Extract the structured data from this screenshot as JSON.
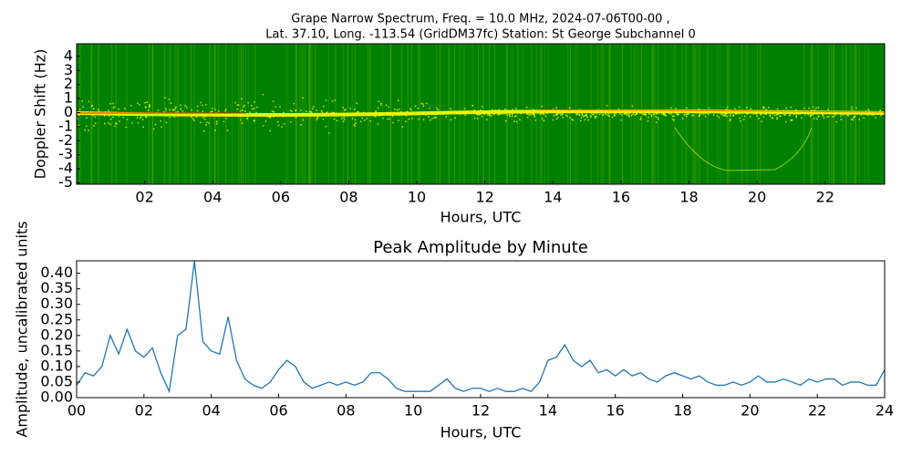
{
  "chart_data": [
    {
      "type": "spectrogram",
      "title": [
        "Grape Narrow Spectrum, Freq. = 10.0 MHz, 2024-07-06T00-00 ,",
        "Lat.  37.10, Long. -113.54 (GridDM37fc) Station: St George Subchannel 0"
      ],
      "xlabel": "Hours, UTC",
      "ylabel": "Doppler Shift (Hz)",
      "colors": [
        "#008000",
        "#ffff00",
        "#ff0000"
      ],
      "xlim": [
        0,
        23.75
      ],
      "ylim": [
        -5.1,
        4.9
      ],
      "xticks": [
        {
          "value": 2,
          "label": "02"
        },
        {
          "value": 4,
          "label": "04"
        },
        {
          "value": 6,
          "label": "06"
        },
        {
          "value": 8,
          "label": "08"
        },
        10,
        12,
        14,
        16,
        18,
        20,
        22
      ],
      "yticks": [
        -5,
        -4,
        -3,
        -2,
        -1,
        0,
        1,
        2,
        3,
        4
      ]
    },
    {
      "type": "line",
      "title": "Peak Amplitude by Minute",
      "xlabel": "Hours, UTC",
      "ylabel": "Amplitude, uncalibrated units",
      "color": "#1f77b4",
      "xlim": [
        0,
        24
      ],
      "ylim": [
        0,
        0.44
      ],
      "xticks": [
        {
          "value": 0,
          "label": "00"
        },
        {
          "value": 2,
          "label": "02"
        },
        {
          "value": 4,
          "label": "04"
        },
        {
          "value": 6,
          "label": "06"
        },
        {
          "value": 8,
          "label": "08"
        },
        10,
        12,
        14,
        16,
        18,
        20,
        22,
        24
      ],
      "yticks": [
        {
          "value": 0,
          "label": "0.00"
        },
        {
          "value": 0.05,
          "label": "0.05"
        },
        {
          "value": 0.1,
          "label": "0.10"
        },
        {
          "value": 0.15,
          "label": "0.15"
        },
        {
          "value": 0.2,
          "label": "0.20"
        },
        {
          "value": 0.25,
          "label": "0.25"
        },
        {
          "value": 0.3,
          "label": "0.30"
        },
        {
          "value": 0.35,
          "label": "0.35"
        },
        {
          "value": 0.4,
          "label": "0.40"
        }
      ],
      "x": [
        0,
        0.25,
        0.5,
        0.75,
        1,
        1.25,
        1.5,
        1.75,
        2,
        2.25,
        2.5,
        2.75,
        3,
        3.25,
        3.5,
        3.75,
        4,
        4.25,
        4.5,
        4.75,
        5,
        5.25,
        5.5,
        5.75,
        6,
        6.25,
        6.5,
        6.75,
        7,
        7.25,
        7.5,
        7.75,
        8,
        8.25,
        8.5,
        8.75,
        9,
        9.25,
        9.5,
        9.75,
        10,
        10.25,
        10.5,
        10.75,
        11,
        11.25,
        11.5,
        11.75,
        12,
        12.25,
        12.5,
        12.75,
        13,
        13.25,
        13.5,
        13.75,
        14,
        14.25,
        14.5,
        14.75,
        15,
        15.25,
        15.5,
        15.75,
        16,
        16.25,
        16.5,
        16.75,
        17,
        17.25,
        17.5,
        17.75,
        18,
        18.25,
        18.5,
        18.75,
        19,
        19.25,
        19.5,
        19.75,
        20,
        20.25,
        20.5,
        20.75,
        21,
        21.25,
        21.5,
        21.75,
        22,
        22.25,
        22.5,
        22.75,
        23,
        23.25,
        23.5,
        23.75,
        24
      ],
      "values": [
        0.04,
        0.08,
        0.07,
        0.1,
        0.2,
        0.14,
        0.22,
        0.15,
        0.13,
        0.16,
        0.08,
        0.02,
        0.2,
        0.22,
        0.44,
        0.18,
        0.15,
        0.14,
        0.26,
        0.12,
        0.06,
        0.04,
        0.03,
        0.05,
        0.09,
        0.12,
        0.1,
        0.05,
        0.03,
        0.04,
        0.05,
        0.04,
        0.05,
        0.04,
        0.05,
        0.08,
        0.08,
        0.06,
        0.03,
        0.02,
        0.02,
        0.02,
        0.02,
        0.04,
        0.06,
        0.03,
        0.02,
        0.03,
        0.03,
        0.02,
        0.03,
        0.02,
        0.02,
        0.03,
        0.02,
        0.05,
        0.12,
        0.13,
        0.17,
        0.12,
        0.1,
        0.12,
        0.08,
        0.09,
        0.07,
        0.09,
        0.07,
        0.08,
        0.06,
        0.05,
        0.07,
        0.08,
        0.07,
        0.06,
        0.07,
        0.05,
        0.04,
        0.04,
        0.05,
        0.04,
        0.05,
        0.07,
        0.05,
        0.05,
        0.06,
        0.05,
        0.04,
        0.06,
        0.05,
        0.06,
        0.06,
        0.04,
        0.05,
        0.05,
        0.04,
        0.04,
        0.09
      ]
    }
  ]
}
